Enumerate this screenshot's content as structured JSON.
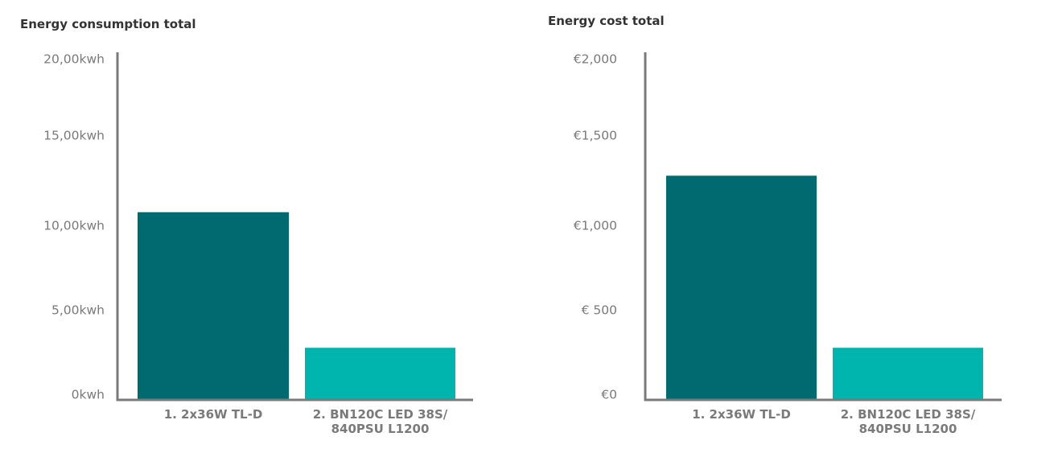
{
  "colors": {
    "bar_dark": "#006A71",
    "bar_light": "#00B5AD",
    "axis": "#7a7a7a",
    "tick_text": "#7a7a7a",
    "title_text": "#333333"
  },
  "chart_data": [
    {
      "type": "bar",
      "title": "Energy consumption total",
      "categories": [
        [
          "1. 2x36W TL-D"
        ],
        [
          "2. BN120C LED 38S/",
          "840PSU L1200"
        ]
      ],
      "values": [
        10.8,
        3.0
      ],
      "unit": "kwh",
      "ylim": [
        0,
        20
      ],
      "yticks": [
        0,
        5,
        10,
        15,
        20
      ],
      "ytick_labels": [
        "0kwh",
        "5,00kwh",
        "10,00kwh",
        "15,00kwh",
        "20,00kwh"
      ],
      "grid": false,
      "legend": "none",
      "xlabel": "",
      "ylabel": ""
    },
    {
      "type": "bar",
      "title": "Energy cost total",
      "categories": [
        [
          "1. 2x36W TL-D"
        ],
        [
          "2. BN120C LED 38S/",
          "840PSU L1200"
        ]
      ],
      "values": [
        1290,
        300
      ],
      "unit": "€",
      "ylim": [
        0,
        2000
      ],
      "yticks": [
        0,
        500,
        1000,
        1500,
        2000
      ],
      "ytick_labels": [
        "€0",
        "€ 500",
        "€1,000",
        "€1,500",
        "€2,000"
      ],
      "grid": false,
      "legend": "none",
      "xlabel": "",
      "ylabel": ""
    }
  ]
}
